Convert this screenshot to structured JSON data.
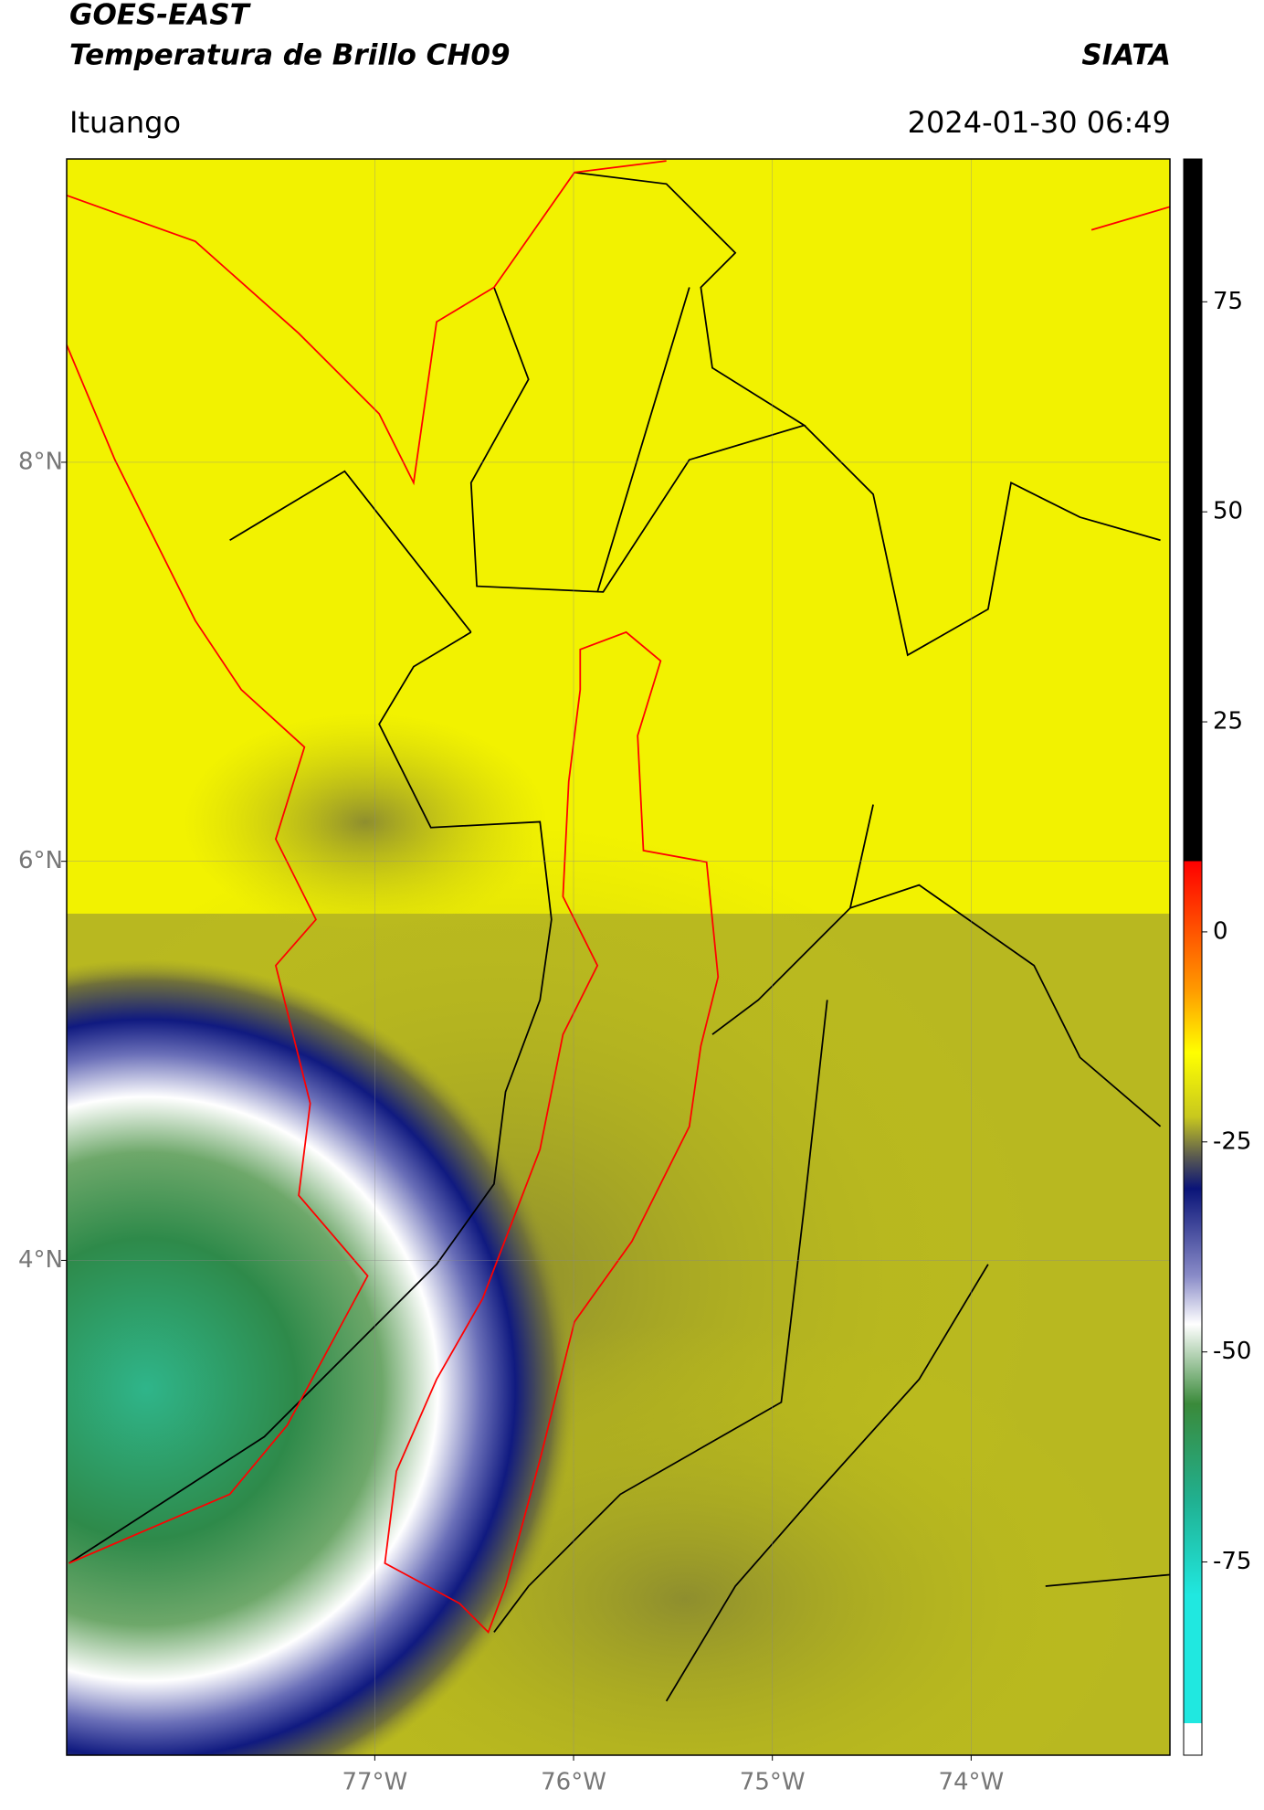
{
  "header": {
    "title": "GOES-EAST",
    "subtitle": "Temperatura de Brillo CH09",
    "brand": "SIATA",
    "location": "Ituango",
    "datetime": "2024-01-30 06:49"
  },
  "map": {
    "xlim": [
      -78.55,
      -73.0
    ],
    "ylim": [
      1.52,
      9.52
    ],
    "xticks": [
      {
        "value": -77,
        "label": "77°W"
      },
      {
        "value": -76,
        "label": "76°W"
      },
      {
        "value": -75,
        "label": "75°W"
      },
      {
        "value": -74,
        "label": "74°W"
      }
    ],
    "yticks": [
      {
        "value": 4,
        "label": "4°N"
      },
      {
        "value": 6,
        "label": "6°N"
      },
      {
        "value": 8,
        "label": "8°N"
      }
    ],
    "grid": true
  },
  "colorbar": {
    "lim": [
      -98,
      92
    ],
    "ticks": [
      -75,
      -50,
      -25,
      0,
      25,
      50,
      75
    ]
  }
}
